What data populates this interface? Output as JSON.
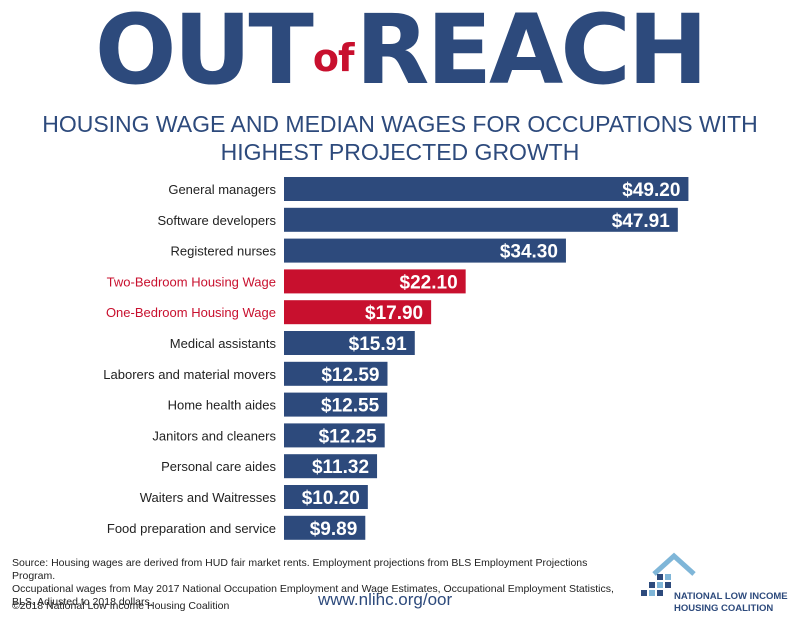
{
  "header": {
    "title_part1": "OUT",
    "title_part2": "of",
    "title_part3": "REACH"
  },
  "subtitle": {
    "line1": "HOUSING WAGE AND MEDIAN WAGES FOR OCCUPATIONS WITH",
    "line2": "HIGHEST PROJECTED GROWTH"
  },
  "colors": {
    "bar_default": "#2d4a7c",
    "bar_highlight": "#c8102e",
    "label_default": "#222222",
    "label_highlight": "#c8102e"
  },
  "chart_data": {
    "type": "bar",
    "orientation": "horizontal",
    "categories": [
      "General managers",
      "Software developers",
      "Registered nurses",
      "Two-Bedroom Housing Wage",
      "One-Bedroom Housing Wage",
      "Medical assistants",
      "Laborers and material movers",
      "Home health aides",
      "Janitors and cleaners",
      "Personal care aides",
      "Waiters and Waitresses",
      "Food preparation and service"
    ],
    "values": [
      49.2,
      47.91,
      34.3,
      22.1,
      17.9,
      15.91,
      12.59,
      12.55,
      12.25,
      11.32,
      10.2,
      9.89
    ],
    "value_labels": [
      "$49.20",
      "$47.91",
      "$34.30",
      "$22.10",
      "$17.90",
      "$15.91",
      "$12.59",
      "$12.55",
      "$12.25",
      "$11.32",
      "$10.20",
      "$9.89"
    ],
    "highlighted": [
      "Two-Bedroom Housing Wage",
      "One-Bedroom Housing Wage"
    ],
    "xlim": [
      0,
      50
    ],
    "grid": false,
    "legend": "none"
  },
  "footer": {
    "source_line1": "Source: Housing wages are derived from HUD fair market rents. Employment projections from BLS Employment Projections Program.",
    "source_line2": "Occupational wages from May 2017 National Occupation Employment and Wage Estimates, Occupational Employment Statistics,",
    "source_line3": "BLS. Adjusted to 2018 dollars.",
    "copyright": "©2018 National Low Income Housing Coalition",
    "url": "www.nlihc.org/oor",
    "org_line1": "NATIONAL LOW INCOME",
    "org_line2": "HOUSING COALITION"
  }
}
